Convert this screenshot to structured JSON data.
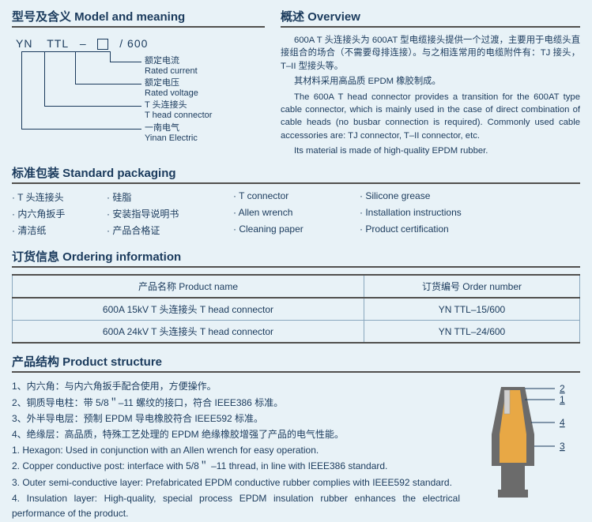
{
  "model": {
    "title": "型号及含义 Model and meaning",
    "code_parts": [
      "YN",
      "TTL",
      "–",
      "□",
      "/ 600"
    ],
    "labels": [
      {
        "cn": "额定电流",
        "en": "Rated current"
      },
      {
        "cn": "额定电压",
        "en": "Rated voltage"
      },
      {
        "cn": "T 头连接头",
        "en": "T head connector"
      },
      {
        "cn": "一南电气",
        "en": "Yinan Electric"
      }
    ]
  },
  "overview": {
    "title": "概述 Overview",
    "p1": "600A T 头连接头为 600AT 型电缆接头提供一个过渡，主要用于电缆头直接组合的场合（不需要母排连接）。与之相连常用的电缆附件有：TJ 接头，T–II 型接头等。",
    "p2": "其材料采用高品质 EPDM 橡胶制成。",
    "p3": "The 600A T head connector provides a transition for the 600AT type cable connector, which is mainly used in the case of direct combination of cable heads (no busbar connection is required). Commonly used cable accessories are: TJ connector, T–II connector, etc.",
    "p4": "Its material is made of high-quality EPDM rubber."
  },
  "packaging": {
    "title": "标准包装 Standard packaging",
    "items": [
      "T 头连接头",
      "硅脂",
      "T connector",
      "Silicone grease",
      "内六角扳手",
      "安装指导说明书",
      "Allen wrench",
      "Installation instructions",
      "清洁纸",
      "产品合格证",
      "Cleaning paper",
      "Product certification"
    ]
  },
  "ordering": {
    "title": "订货信息 Ordering information",
    "headers": [
      "产品名称 Product name",
      "订货编号 Order number"
    ],
    "rows": [
      [
        "600A 15kV T 头连接头 T head connector",
        "YN TTL–15/600"
      ],
      [
        "600A 24kV T 头连接头 T head connector",
        "YN TTL–24/600"
      ]
    ]
  },
  "structure": {
    "title": "产品结构 Product structure",
    "lines_cn": [
      "1、内六角：与内六角扳手配合使用，方便操作。",
      "2、铜质导电柱：带 5/8＂–11 螺纹的接口，符合 IEEE386 标准。",
      "3、外半导电层：预制 EPDM 导电橡胶符合 IEEE592 标准。",
      "4、绝缘层：高品质，特殊工艺处理的 EPDM 绝缘橡胶增强了产品的电气性能。"
    ],
    "lines_en": [
      "1. Hexagon: Used in conjunction with an Allen wrench for easy operation.",
      "2. Copper conductive post: interface with 5/8＂ –11 thread, in line with IEEE386 standard.",
      "3. Outer semi-conductive layer: Prefabricated EPDM conductive rubber complies with IEEE592 standard.",
      "4. Insulation layer: High-quality, special process EPDM insulation rubber enhances the electrical performance of the product."
    ],
    "diagram": {
      "body_color": "#6b6b6b",
      "inner_color": "#e8a845",
      "post_color": "#d0d0d0",
      "callouts": [
        "2",
        "1",
        "4",
        "3"
      ]
    }
  }
}
